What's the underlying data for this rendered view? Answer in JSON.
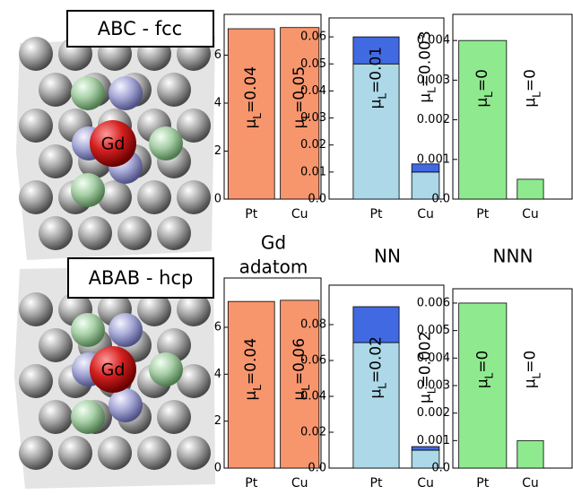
{
  "structures": [
    {
      "title": "ABC - fcc",
      "atom_label": "Gd"
    },
    {
      "title": "ABAB - hcp",
      "atom_label": "Gd"
    }
  ],
  "column_labels": [
    "Gd",
    "adatom",
    "NN",
    "NNN"
  ],
  "chart_data": [
    {
      "type": "bar",
      "categories": [
        "Pt",
        "Cu"
      ],
      "series": [
        {
          "color": "#f7966d",
          "values": [
            7.1,
            7.15
          ]
        }
      ],
      "annotations": [
        "μL=0.04",
        "μL=0.05"
      ],
      "ylim": [
        0,
        7.7
      ],
      "yticks": [
        0,
        2,
        4,
        6
      ]
    },
    {
      "type": "bar",
      "categories": [
        "Pt",
        "Cu"
      ],
      "series": [
        {
          "color": "#acd8e8",
          "values": [
            0.05,
            0.01
          ]
        },
        {
          "color": "#4169e1",
          "values": [
            0.01,
            0.003
          ]
        }
      ],
      "annotations": [
        "μL=0.01",
        "μL=0.003"
      ],
      "ylim": [
        0,
        0.067
      ],
      "yticks": [
        {
          "value": 0,
          "label": "0.0"
        },
        0.01,
        0.02,
        0.03,
        0.04,
        0.05,
        0.06
      ]
    },
    {
      "type": "bar",
      "categories": [
        "Pt",
        "Cu"
      ],
      "series": [
        {
          "color": "#8fea8f",
          "values": [
            0.004,
            0.0005
          ]
        }
      ],
      "annotations": [
        "μL=0",
        "μL=0"
      ],
      "ylim": [
        0,
        0.00466
      ],
      "yticks": [
        {
          "value": 0,
          "label": "0.0"
        },
        0.001,
        0.002,
        0.003,
        0.004
      ]
    },
    {
      "type": "bar",
      "categories": [
        "Pt",
        "Cu"
      ],
      "series": [
        {
          "color": "#f7966d",
          "values": [
            7.1,
            7.15
          ]
        }
      ],
      "annotations": [
        "μL=0.04",
        "μL=0.06"
      ],
      "ylim": [
        0,
        8.1
      ],
      "yticks": [
        0,
        2,
        4,
        6
      ]
    },
    {
      "type": "bar",
      "categories": [
        "Pt",
        "Cu"
      ],
      "series": [
        {
          "color": "#acd8e8",
          "values": [
            0.07,
            0.01
          ]
        },
        {
          "color": "#4169e1",
          "values": [
            0.02,
            0.002
          ]
        }
      ],
      "annotations": [
        "μL=0.02",
        "μL=0.002"
      ],
      "ylim": [
        0,
        0.102
      ],
      "yticks": [
        {
          "value": 0,
          "label": "0.0"
        },
        0.02,
        0.04,
        0.06,
        0.08
      ]
    },
    {
      "type": "bar",
      "categories": [
        "Pt",
        "Cu"
      ],
      "series": [
        {
          "color": "#8fea8f",
          "values": [
            0.006,
            0.001
          ]
        }
      ],
      "annotations": [
        "μL=0",
        "μL=0"
      ],
      "ylim": [
        0,
        0.00652
      ],
      "yticks": [
        {
          "value": 0,
          "label": "0.0"
        },
        0.001,
        0.002,
        0.003,
        0.004,
        0.005,
        0.006
      ]
    }
  ]
}
